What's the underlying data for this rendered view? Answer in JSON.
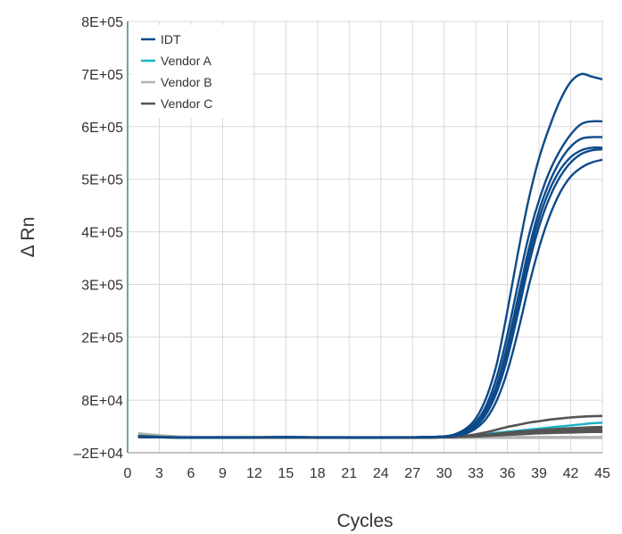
{
  "chart_data": {
    "type": "line",
    "title": "",
    "xlabel": "Cycles",
    "ylabel": "Δ Rn",
    "xlim": [
      0,
      45
    ],
    "ylim": [
      -20000,
      800000
    ],
    "x_ticks": [
      0,
      3,
      6,
      9,
      12,
      15,
      18,
      21,
      24,
      27,
      30,
      33,
      36,
      39,
      42,
      45
    ],
    "x_tick_labels": [
      "0",
      "3",
      "6",
      "9",
      "12",
      "15",
      "18",
      "21",
      "24",
      "27",
      "30",
      "33",
      "36",
      "39",
      "42",
      "45"
    ],
    "y_ticks": [
      -20000,
      80000,
      200000,
      300000,
      400000,
      500000,
      600000,
      700000,
      800000
    ],
    "y_tick_labels": [
      "–2E+04",
      "8E+04",
      "2E+05",
      "3E+05",
      "4E+05",
      "5E+05",
      "6E+05",
      "7E+05",
      "8E+05"
    ],
    "grid": true,
    "legend": "top-left",
    "legend_entries": [
      {
        "name": "IDT",
        "color": "#0d4a8a"
      },
      {
        "name": "Vendor A",
        "color": "#1ab3c3"
      },
      {
        "name": "Vendor B",
        "color": "#b3b3b3"
      },
      {
        "name": "Vendor C",
        "color": "#555555"
      }
    ],
    "x": [
      1,
      5,
      10,
      15,
      20,
      25,
      28,
      30,
      31,
      32,
      33,
      34,
      35,
      36,
      37,
      38,
      39,
      40,
      41,
      42,
      43,
      44,
      45
    ],
    "series": [
      {
        "group": "IDT",
        "color": "#0d4a8a",
        "values": [
          10000,
          9000,
          9000,
          9500,
          9000,
          9000,
          9500,
          11000,
          15000,
          25000,
          45000,
          85000,
          150000,
          250000,
          360000,
          460000,
          540000,
          600000,
          650000,
          685000,
          700000,
          695000,
          690000
        ]
      },
      {
        "group": "IDT",
        "color": "#0d4a8a",
        "values": [
          10000,
          9000,
          9000,
          9500,
          9000,
          9000,
          9500,
          11000,
          14000,
          22000,
          38000,
          70000,
          125000,
          205000,
          300000,
          390000,
          460000,
          515000,
          555000,
          585000,
          605000,
          610000,
          610000
        ]
      },
      {
        "group": "IDT",
        "color": "#0d4a8a",
        "values": [
          10000,
          9000,
          9000,
          9500,
          9000,
          9000,
          9500,
          11000,
          13000,
          20000,
          34000,
          62000,
          110000,
          185000,
          275000,
          365000,
          440000,
          495000,
          535000,
          562000,
          577000,
          580000,
          580000
        ]
      },
      {
        "group": "IDT",
        "color": "#0d4a8a",
        "values": [
          10000,
          9000,
          9000,
          9500,
          9000,
          9000,
          9500,
          11000,
          13000,
          19000,
          32000,
          58000,
          103000,
          172000,
          260000,
          350000,
          425000,
          480000,
          518000,
          542000,
          555000,
          560000,
          560000
        ]
      },
      {
        "group": "IDT",
        "color": "#0d4a8a",
        "values": [
          10000,
          9000,
          9000,
          9500,
          9000,
          9000,
          9500,
          10500,
          12500,
          18000,
          30000,
          54000,
          96000,
          160000,
          245000,
          335000,
          410000,
          465000,
          505000,
          532000,
          548000,
          555000,
          557000
        ]
      },
      {
        "group": "IDT",
        "color": "#0d4a8a",
        "values": [
          10000,
          9000,
          9000,
          9500,
          9000,
          9000,
          9500,
          10500,
          12000,
          16000,
          26000,
          45000,
          80000,
          135000,
          210000,
          295000,
          370000,
          430000,
          475000,
          505000,
          522000,
          532000,
          537000
        ]
      },
      {
        "group": "Vendor A",
        "color": "#1ab3c3",
        "values": [
          13000,
          9000,
          9000,
          9000,
          9000,
          9000,
          9500,
          10000,
          11000,
          12000,
          14000,
          16000,
          18000,
          20000,
          22000,
          24000,
          26000,
          28000,
          30000,
          32000,
          34000,
          36000,
          37000
        ]
      },
      {
        "group": "Vendor B",
        "color": "#b3b3b3",
        "values": [
          16000,
          10000,
          9500,
          9500,
          9000,
          9000,
          9000,
          9000,
          9000,
          9000,
          9000,
          9000,
          9000,
          9000,
          9000,
          9000,
          9000,
          9000,
          9000,
          9000,
          9000,
          9000,
          9000
        ]
      },
      {
        "group": "Vendor C",
        "color": "#555555",
        "values": [
          12000,
          9000,
          9000,
          9000,
          9000,
          9000,
          9500,
          10000,
          11000,
          12500,
          15000,
          19000,
          24000,
          29000,
          33000,
          37000,
          40000,
          43000,
          45000,
          47000,
          48500,
          49500,
          50000
        ]
      },
      {
        "group": "Vendor C",
        "color": "#555555",
        "values": [
          10000,
          9000,
          9000,
          9000,
          9000,
          9000,
          9000,
          9500,
          10000,
          11000,
          12500,
          14000,
          16000,
          18000,
          20000,
          21500,
          23000,
          24500,
          25500,
          26500,
          27500,
          28500,
          29000
        ]
      },
      {
        "group": "Vendor C",
        "color": "#555555",
        "values": [
          10000,
          9000,
          9000,
          9000,
          9000,
          9000,
          9000,
          9500,
          10000,
          11000,
          12000,
          13500,
          15000,
          16500,
          18000,
          19500,
          21000,
          22000,
          23000,
          24000,
          25000,
          25500,
          26000
        ]
      },
      {
        "group": "Vendor C",
        "color": "#555555",
        "values": [
          10000,
          9000,
          9000,
          9000,
          9000,
          9000,
          9000,
          9500,
          10000,
          10500,
          11500,
          12500,
          14000,
          15000,
          16500,
          17500,
          18500,
          19500,
          20500,
          21000,
          21500,
          22000,
          22000
        ]
      },
      {
        "group": "Vendor C",
        "color": "#555555",
        "values": [
          10000,
          9000,
          9000,
          9000,
          9000,
          9000,
          9000,
          9500,
          10000,
          10500,
          11000,
          12000,
          13000,
          14000,
          15000,
          16000,
          17000,
          17500,
          18000,
          18500,
          19000,
          19500,
          19500
        ]
      }
    ]
  }
}
